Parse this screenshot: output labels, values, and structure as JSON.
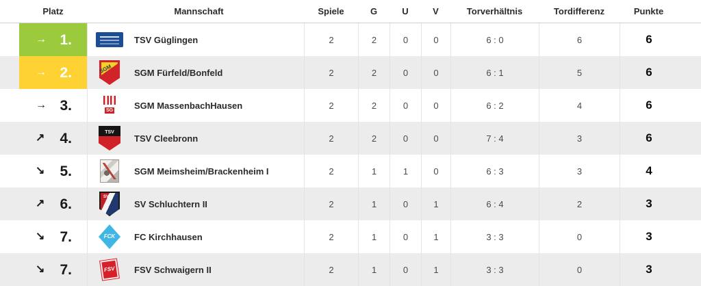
{
  "header": {
    "columns": [
      {
        "label": "Platz"
      },
      {
        "label": "Mannschaft"
      },
      {
        "label": "Spiele"
      },
      {
        "label": "G"
      },
      {
        "label": "U"
      },
      {
        "label": "V"
      },
      {
        "label": "Torverhältnis"
      },
      {
        "label": "Tordifferenz"
      },
      {
        "label": "Punkte"
      }
    ]
  },
  "rows": [
    {
      "rank": "1.",
      "trend": "same",
      "arrow": "→",
      "highlight": "green",
      "team": "TSV Güglingen",
      "logo_style": "guglingen",
      "logo_text": "",
      "spiele": "2",
      "g": "2",
      "u": "0",
      "v": "0",
      "torverhaeltnis": "6 : 0",
      "tordifferenz": "6",
      "punkte": "6"
    },
    {
      "rank": "2.",
      "trend": "same",
      "arrow": "→",
      "highlight": "yellow",
      "team": "SGM Fürfeld/Bonfeld",
      "logo_style": "fuerfeld",
      "logo_text": "SGM",
      "spiele": "2",
      "g": "2",
      "u": "0",
      "v": "0",
      "torverhaeltnis": "6 : 1",
      "tordifferenz": "5",
      "punkte": "6"
    },
    {
      "rank": "3.",
      "trend": "same",
      "arrow": "→",
      "highlight": null,
      "team": "SGM MassenbachHausen",
      "logo_style": "massenbach",
      "logo_text": "SG",
      "spiele": "2",
      "g": "2",
      "u": "0",
      "v": "0",
      "torverhaeltnis": "6 : 2",
      "tordifferenz": "4",
      "punkte": "6"
    },
    {
      "rank": "4.",
      "trend": "up",
      "arrow": "↗",
      "highlight": null,
      "team": "TSV Cleebronn",
      "logo_style": "cleebronn",
      "logo_text": "TSV",
      "spiele": "2",
      "g": "2",
      "u": "0",
      "v": "0",
      "torverhaeltnis": "7 : 4",
      "tordifferenz": "3",
      "punkte": "6"
    },
    {
      "rank": "5.",
      "trend": "down",
      "arrow": "↘",
      "highlight": null,
      "team": "SGM Meimsheim/Brackenheim I",
      "logo_style": "meimsheim",
      "logo_text": "",
      "spiele": "2",
      "g": "1",
      "u": "1",
      "v": "0",
      "torverhaeltnis": "6 : 3",
      "tordifferenz": "3",
      "punkte": "4"
    },
    {
      "rank": "6.",
      "trend": "up",
      "arrow": "↗",
      "highlight": null,
      "team": "SV Schluchtern II",
      "logo_style": "schluchtern",
      "logo_text": "SV",
      "spiele": "2",
      "g": "1",
      "u": "0",
      "v": "1",
      "torverhaeltnis": "6 : 4",
      "tordifferenz": "2",
      "punkte": "3"
    },
    {
      "rank": "7.",
      "trend": "down",
      "arrow": "↘",
      "highlight": null,
      "team": "FC Kirchhausen",
      "logo_style": "kirchhausen",
      "logo_text": "FCK",
      "spiele": "2",
      "g": "1",
      "u": "0",
      "v": "1",
      "torverhaeltnis": "3 : 3",
      "tordifferenz": "0",
      "punkte": "3"
    },
    {
      "rank": "7.",
      "trend": "down",
      "arrow": "↘",
      "highlight": null,
      "team": "FSV Schwaigern II",
      "logo_style": "schwaigern",
      "logo_text": "FSV",
      "spiele": "2",
      "g": "1",
      "u": "0",
      "v": "1",
      "torverhaeltnis": "3 : 3",
      "tordifferenz": "0",
      "punkte": "3"
    }
  ],
  "colors": {
    "green": "#9BCA3C",
    "yellow": "#FFD234"
  }
}
